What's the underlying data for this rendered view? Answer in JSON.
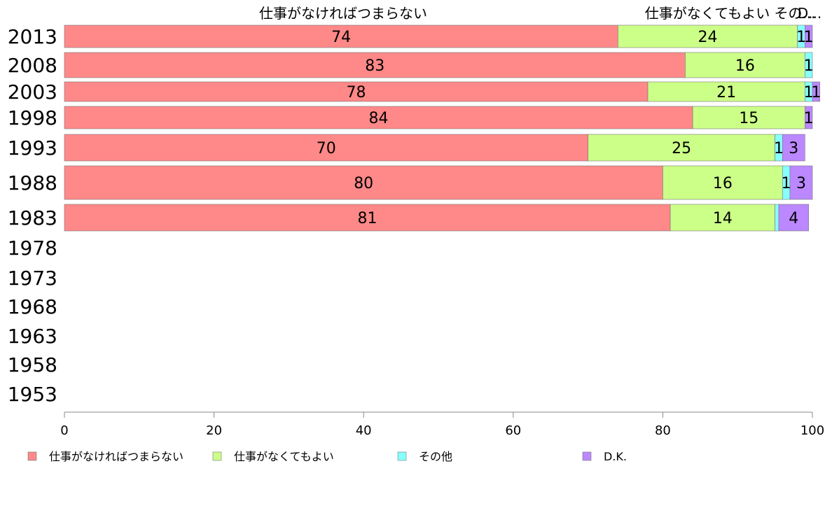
{
  "chart_data": {
    "type": "bar",
    "orientation": "horizontal",
    "stacked": true,
    "categories": [
      "2013",
      "2008",
      "2003",
      "1998",
      "1993",
      "1988",
      "1983",
      "1978",
      "1973",
      "1968",
      "1963",
      "1958",
      "1953"
    ],
    "series": [
      {
        "name": "仕事がなければつまらない",
        "color": "#ff8888",
        "values": [
          74,
          83,
          78,
          84,
          70,
          80,
          81,
          null,
          null,
          null,
          null,
          null,
          null
        ]
      },
      {
        "name": "仕事がなくてもよい",
        "color": "#ccff88",
        "values": [
          24,
          16,
          21,
          15,
          25,
          16,
          14,
          null,
          null,
          null,
          null,
          null,
          null
        ]
      },
      {
        "name": "その他",
        "color": "#88ffff",
        "values": [
          1,
          1,
          1,
          0,
          1,
          1,
          0.5,
          null,
          null,
          null,
          null,
          null,
          null
        ]
      },
      {
        "name": "D.K.",
        "color": "#bb88ff",
        "values": [
          1,
          0,
          1,
          1,
          3,
          3,
          4,
          null,
          null,
          null,
          null,
          null,
          null
        ]
      }
    ],
    "data_labels": [
      [
        "74",
        "24",
        "1",
        "1"
      ],
      [
        "83",
        "16",
        "1",
        ""
      ],
      [
        "78",
        "21",
        "1",
        "1"
      ],
      [
        "84",
        "15",
        "",
        "1"
      ],
      [
        "70",
        "25",
        "1",
        "3"
      ],
      [
        "80",
        "16",
        "1",
        "3"
      ],
      [
        "81",
        "14",
        "",
        "4"
      ],
      [
        "",
        "",
        "",
        ""
      ],
      [
        "",
        "",
        "",
        ""
      ],
      [
        "",
        "",
        "",
        ""
      ],
      [
        "",
        "",
        "",
        ""
      ],
      [
        "",
        "",
        "",
        ""
      ],
      [
        "",
        "",
        "",
        ""
      ]
    ],
    "top_labels": [
      "仕事がなければつまらない",
      "仕事がなくてもよい",
      "その...",
      "D..."
    ],
    "xlim": [
      0,
      100
    ],
    "xticks": [
      "0",
      "20",
      "40",
      "60",
      "80",
      "100"
    ],
    "grid": false,
    "legend": {
      "position": "bottom",
      "items": [
        "仕事がなければつまらない",
        "仕事がなくてもよい",
        "その他",
        "D.K."
      ]
    }
  }
}
